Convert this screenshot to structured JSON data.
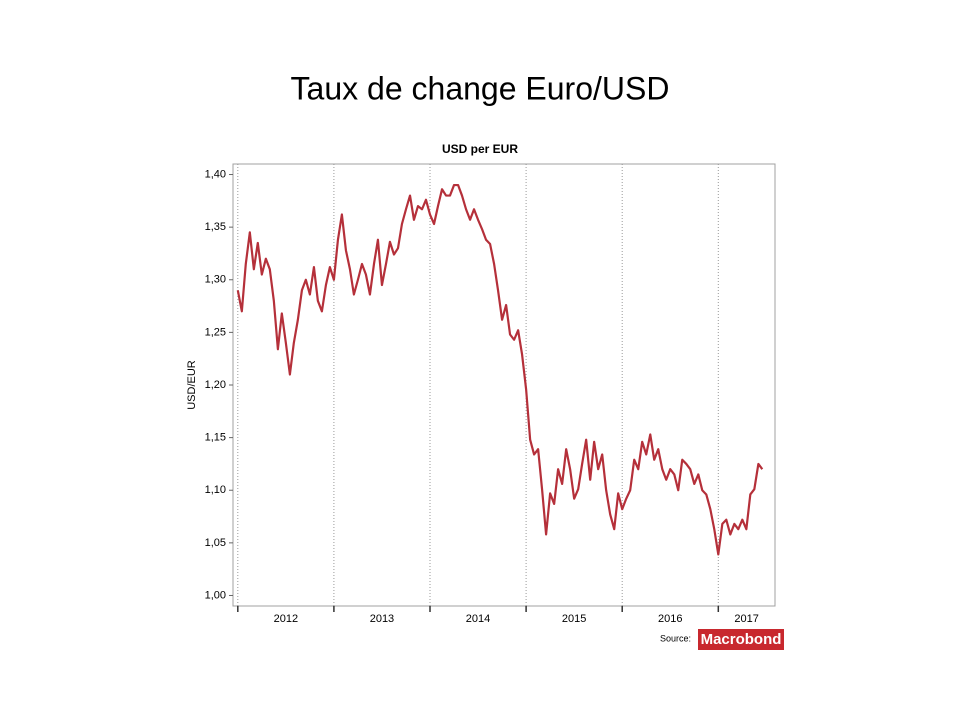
{
  "slide_title": "Taux de change Euro/USD",
  "chart_data": {
    "type": "line",
    "title": "USD per EUR",
    "y_label": "USD/EUR",
    "color": "#b5303a",
    "x": [
      2012,
      2012.042,
      2012.083,
      2012.125,
      2012.167,
      2012.208,
      2012.25,
      2012.292,
      2012.333,
      2012.375,
      2012.417,
      2012.458,
      2012.5,
      2012.542,
      2012.583,
      2012.625,
      2012.667,
      2012.708,
      2012.75,
      2012.792,
      2012.833,
      2012.875,
      2012.917,
      2012.958,
      2013,
      2013.042,
      2013.083,
      2013.125,
      2013.167,
      2013.208,
      2013.25,
      2013.292,
      2013.333,
      2013.375,
      2013.417,
      2013.458,
      2013.5,
      2013.542,
      2013.583,
      2013.625,
      2013.667,
      2013.708,
      2013.75,
      2013.792,
      2013.833,
      2013.875,
      2013.917,
      2013.958,
      2014,
      2014.042,
      2014.083,
      2014.125,
      2014.167,
      2014.208,
      2014.25,
      2014.292,
      2014.333,
      2014.375,
      2014.417,
      2014.458,
      2014.5,
      2014.542,
      2014.583,
      2014.625,
      2014.667,
      2014.708,
      2014.75,
      2014.792,
      2014.833,
      2014.875,
      2014.917,
      2014.958,
      2015,
      2015.042,
      2015.083,
      2015.125,
      2015.167,
      2015.208,
      2015.25,
      2015.292,
      2015.333,
      2015.375,
      2015.417,
      2015.458,
      2015.5,
      2015.542,
      2015.583,
      2015.625,
      2015.667,
      2015.708,
      2015.75,
      2015.792,
      2015.833,
      2015.875,
      2015.917,
      2015.958,
      2016,
      2016.042,
      2016.083,
      2016.125,
      2016.167,
      2016.208,
      2016.25,
      2016.292,
      2016.333,
      2016.375,
      2016.417,
      2016.458,
      2016.5,
      2016.542,
      2016.583,
      2016.625,
      2016.667,
      2016.708,
      2016.75,
      2016.792,
      2016.833,
      2016.875,
      2016.917,
      2016.958,
      2017,
      2017.042,
      2017.083,
      2017.125,
      2017.167,
      2017.208,
      2017.25,
      2017.292,
      2017.333,
      2017.375,
      2017.417,
      2017.458
    ],
    "values": [
      1.29,
      1.27,
      1.315,
      1.345,
      1.31,
      1.335,
      1.305,
      1.32,
      1.31,
      1.28,
      1.234,
      1.268,
      1.24,
      1.21,
      1.24,
      1.262,
      1.29,
      1.3,
      1.286,
      1.312,
      1.28,
      1.27,
      1.295,
      1.312,
      1.3,
      1.338,
      1.362,
      1.328,
      1.31,
      1.286,
      1.3,
      1.315,
      1.305,
      1.286,
      1.315,
      1.338,
      1.295,
      1.315,
      1.336,
      1.324,
      1.33,
      1.353,
      1.367,
      1.38,
      1.357,
      1.37,
      1.367,
      1.376,
      1.362,
      1.353,
      1.37,
      1.386,
      1.38,
      1.38,
      1.39,
      1.39,
      1.38,
      1.367,
      1.357,
      1.367,
      1.357,
      1.348,
      1.338,
      1.334,
      1.315,
      1.29,
      1.262,
      1.276,
      1.248,
      1.243,
      1.252,
      1.229,
      1.196,
      1.148,
      1.134,
      1.139,
      1.1,
      1.058,
      1.097,
      1.087,
      1.12,
      1.106,
      1.139,
      1.12,
      1.092,
      1.101,
      1.125,
      1.148,
      1.11,
      1.146,
      1.12,
      1.134,
      1.1,
      1.077,
      1.063,
      1.097,
      1.082,
      1.092,
      1.1,
      1.129,
      1.12,
      1.146,
      1.134,
      1.153,
      1.129,
      1.139,
      1.12,
      1.11,
      1.12,
      1.115,
      1.1,
      1.129,
      1.125,
      1.12,
      1.106,
      1.115,
      1.1,
      1.096,
      1.082,
      1.063,
      1.039,
      1.068,
      1.072,
      1.058,
      1.068,
      1.063,
      1.072,
      1.063,
      1.096,
      1.101,
      1.125,
      1.12
    ],
    "xlim": [
      2011.95,
      2017.59
    ],
    "xticks": [
      2012,
      2013,
      2014,
      2015,
      2016,
      2017
    ],
    "ylim": [
      0.99,
      1.41
    ],
    "yticks": [
      {
        "value": 1.0,
        "label": "1,00"
      },
      {
        "value": 1.05,
        "label": "1,05"
      },
      {
        "value": 1.1,
        "label": "1,10"
      },
      {
        "value": 1.15,
        "label": "1,15"
      },
      {
        "value": 1.2,
        "label": "1,20"
      },
      {
        "value": 1.25,
        "label": "1,25"
      },
      {
        "value": 1.3,
        "label": "1,30"
      },
      {
        "value": 1.35,
        "label": "1,35"
      },
      {
        "value": 1.4,
        "label": "1,40"
      }
    ],
    "grid": true,
    "source": {
      "label": "Source:",
      "logo": "Macrobond"
    }
  }
}
